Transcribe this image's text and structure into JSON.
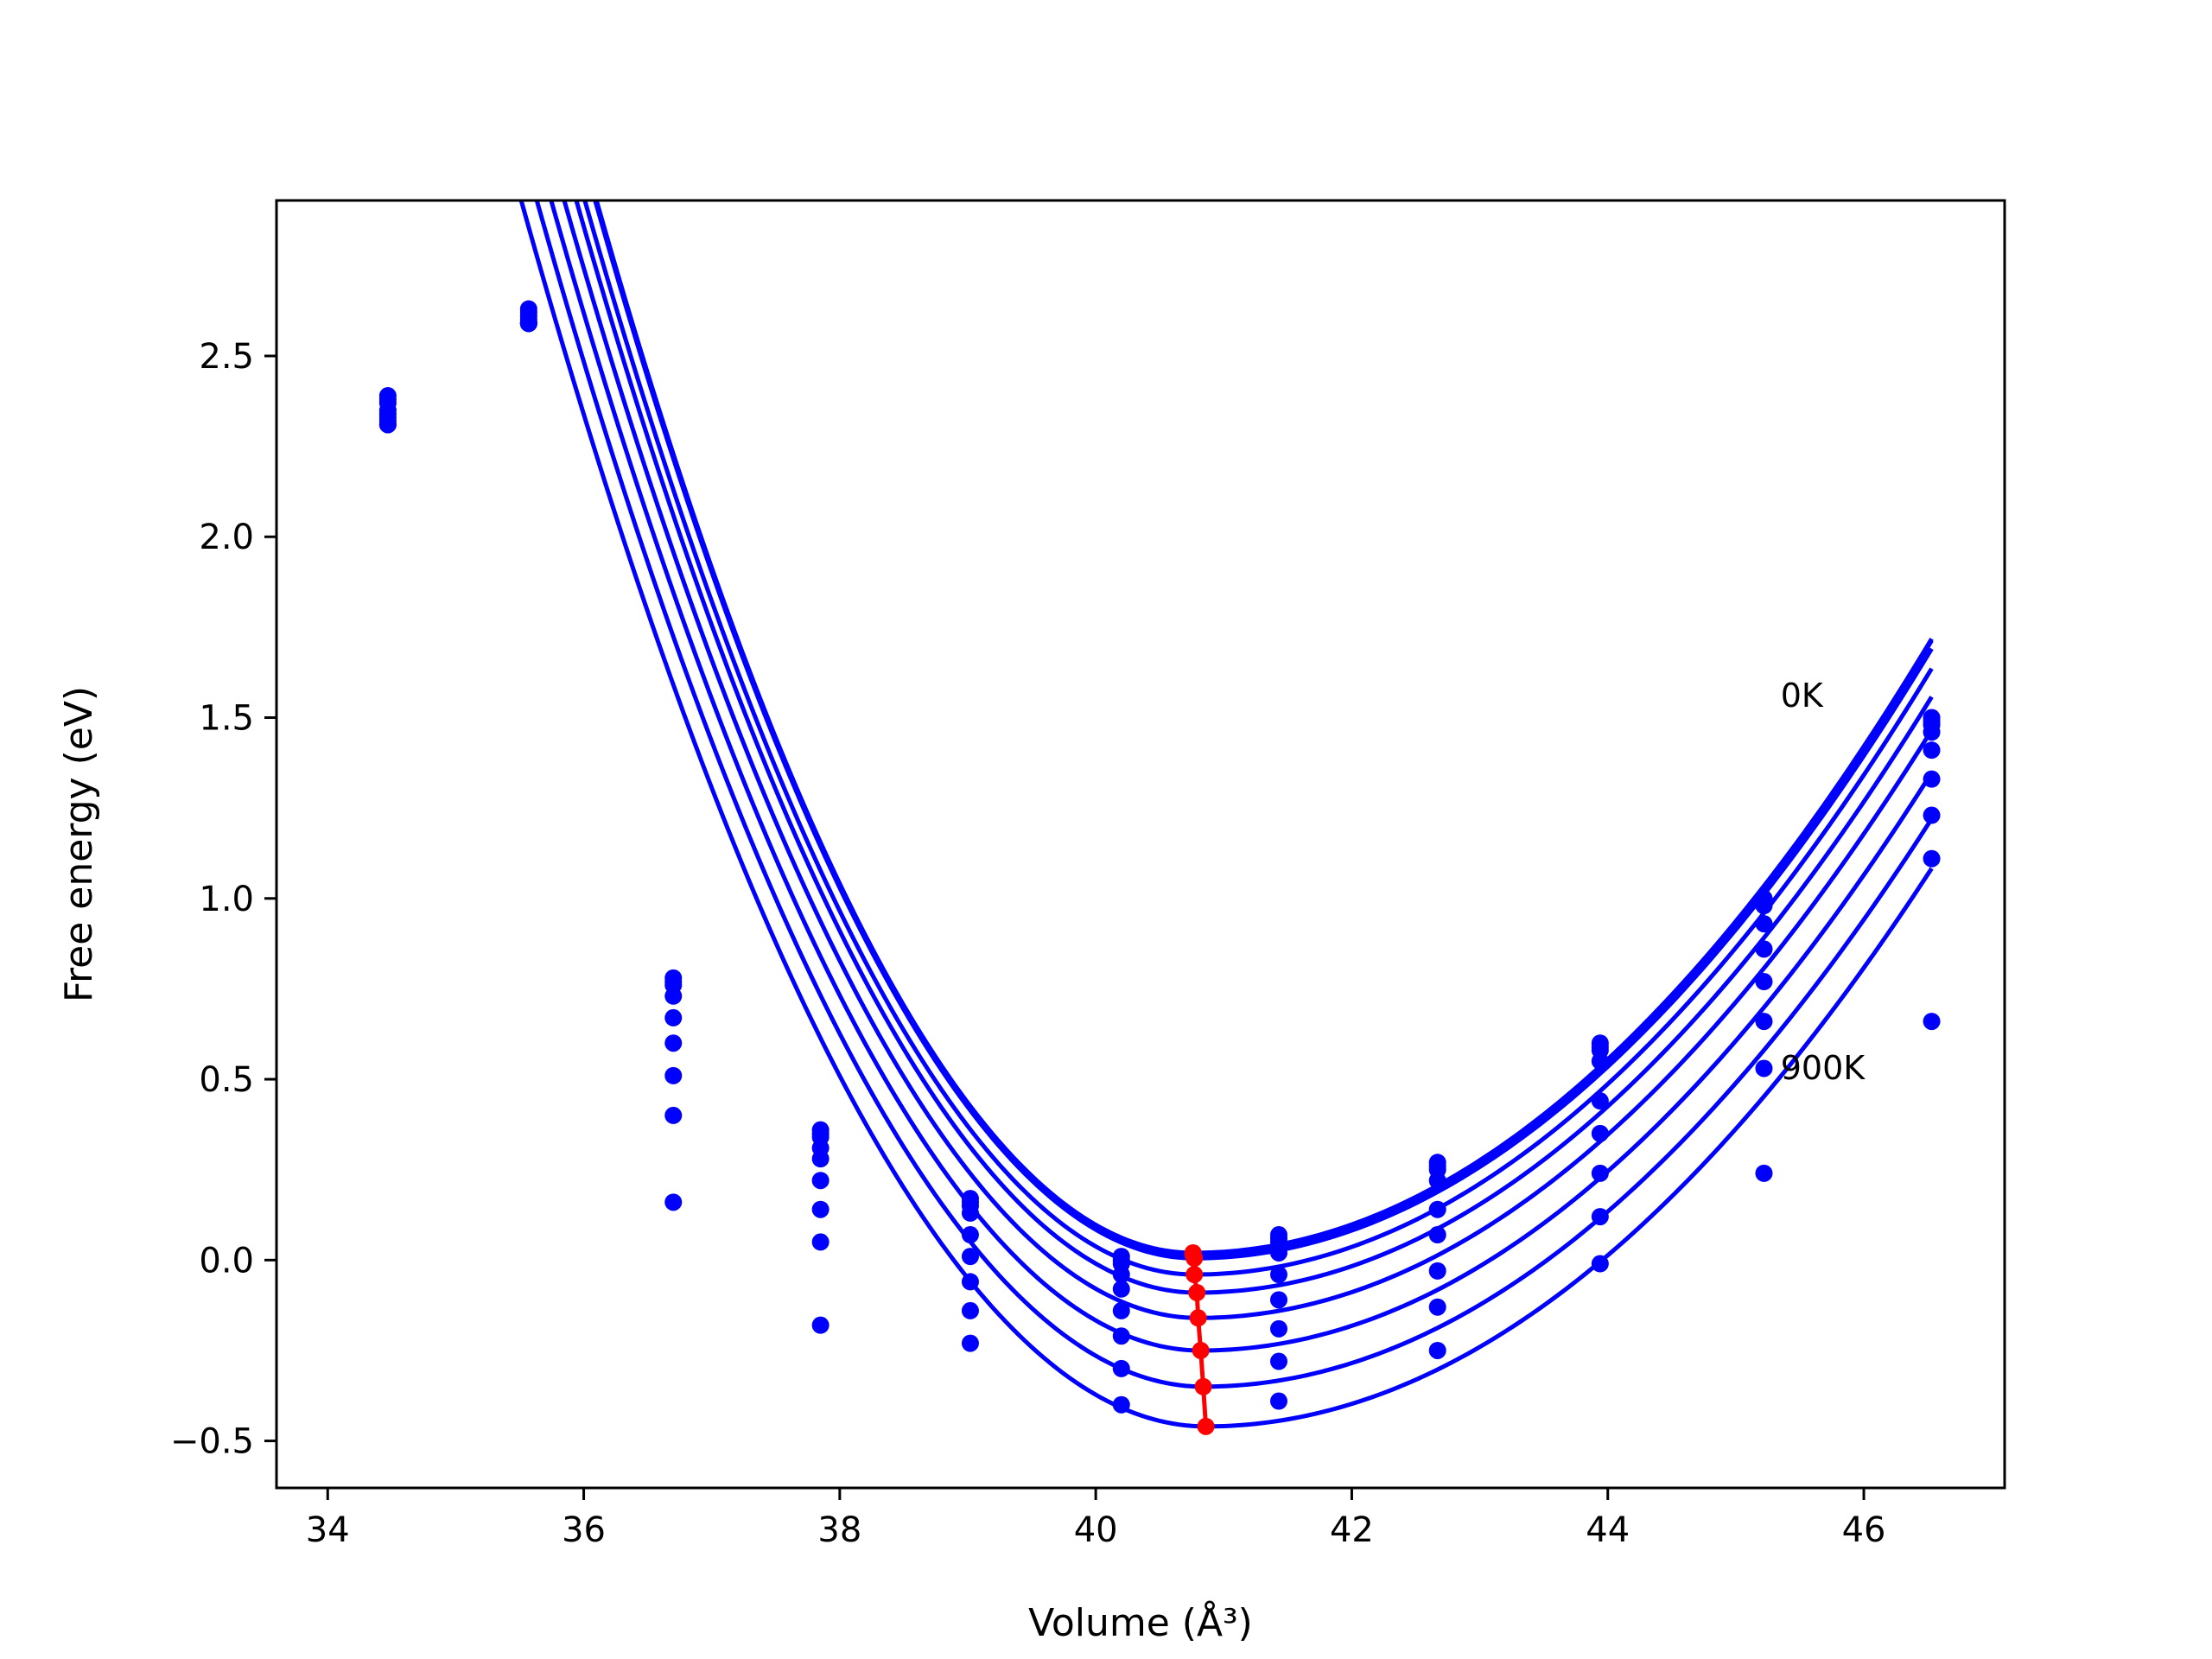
{
  "chart_data": {
    "type": "line",
    "xlabel": "Volume (Å³)",
    "ylabel": "Free energy (eV)",
    "xlim": [
      33.6,
      47.1
    ],
    "ylim": [
      -0.63,
      2.93
    ],
    "xticks": [
      "34",
      "36",
      "38",
      "40",
      "42",
      "44",
      "46"
    ],
    "yticks": [
      "−0.5",
      "0.0",
      "0.5",
      "1.0",
      "1.5",
      "2.0",
      "2.5"
    ],
    "xtick_values": [
      34,
      36,
      38,
      40,
      42,
      44,
      46
    ],
    "ytick_values": [
      -0.5,
      0,
      0.5,
      1.0,
      1.5,
      2.0,
      2.5
    ],
    "grid": false,
    "colors": {
      "curves": "#0000ff",
      "points": "#0000ff",
      "minima": "#ff0000"
    },
    "annotations": [
      {
        "text": "0K",
        "x": 45.35,
        "y": 1.53
      },
      {
        "text": "900K",
        "x": 45.35,
        "y": 0.5
      }
    ],
    "volumes": [
      34.47,
      35.57,
      36.7,
      37.85,
      39.02,
      40.2,
      41.43,
      42.67,
      43.94,
      45.22,
      46.53
    ],
    "curve_range": [
      34.47,
      46.53
    ],
    "series": [
      {
        "fit": {
          "v0": 40.76,
          "e0": 0.02,
          "a_left": 0.134,
          "a_right": 0.051
        },
        "points": [
          2.39,
          2.63,
          0.78,
          0.36,
          0.17,
          0.01,
          0.07,
          0.27,
          0.6,
          1.0,
          1.5
        ]
      },
      {
        "fit": {
          "v0": 40.76,
          "e0": 0.015,
          "a_left": 0.134,
          "a_right": 0.051
        },
        "points": [
          2.38,
          2.62,
          0.77,
          0.35,
          0.16,
          0.0,
          0.06,
          0.26,
          0.59,
          0.99,
          1.49
        ]
      },
      {
        "fit": {
          "v0": 40.77,
          "e0": 0.005,
          "a_left": 0.1335,
          "a_right": 0.0508
        },
        "points": [
          2.37,
          2.61,
          0.76,
          0.34,
          0.15,
          -0.01,
          0.05,
          0.25,
          0.58,
          0.98,
          1.48
        ]
      },
      {
        "fit": {
          "v0": 40.77,
          "e0": -0.04,
          "a_left": 0.131,
          "a_right": 0.0505
        },
        "points": [
          2.35,
          2.6,
          0.73,
          0.31,
          0.13,
          -0.04,
          0.02,
          0.22,
          0.55,
          0.93,
          1.46
        ]
      },
      {
        "fit": {
          "v0": 40.79,
          "e0": -0.09,
          "a_left": 0.1285,
          "a_right": 0.05
        },
        "points": [
          2.34,
          2.59,
          0.67,
          0.28,
          0.07,
          -0.08,
          -0.04,
          0.14,
          0.44,
          0.86,
          1.41
        ]
      },
      {
        "fit": {
          "v0": 40.8,
          "e0": -0.16,
          "a_left": 0.126,
          "a_right": 0.0495
        },
        "points": [
          2.33,
          2.59,
          0.6,
          0.22,
          0.01,
          -0.14,
          -0.11,
          0.07,
          0.35,
          0.77,
          1.33
        ]
      },
      {
        "fit": {
          "v0": 40.82,
          "e0": -0.25,
          "a_left": 0.1235,
          "a_right": 0.049
        },
        "points": [
          2.32,
          2.59,
          0.51,
          0.14,
          -0.06,
          -0.21,
          -0.19,
          -0.03,
          0.24,
          0.66,
          1.23
        ]
      },
      {
        "fit": {
          "v0": 40.84,
          "e0": -0.35,
          "a_left": 0.121,
          "a_right": 0.0485
        },
        "points": [
          2.31,
          2.59,
          0.4,
          0.05,
          -0.14,
          -0.3,
          -0.28,
          -0.13,
          0.12,
          0.53,
          1.11
        ]
      },
      {
        "fit": {
          "v0": 40.86,
          "e0": -0.46,
          "a_left": 0.1185,
          "a_right": 0.048
        },
        "points": [
          2.31,
          2.59,
          0.16,
          -0.18,
          -0.23,
          -0.4,
          -0.39,
          -0.25,
          -0.01,
          0.24,
          0.66
        ]
      }
    ],
    "minima": [
      {
        "x": 40.76,
        "y": 0.02
      },
      {
        "x": 40.76,
        "y": 0.015
      },
      {
        "x": 40.77,
        "y": 0.005
      },
      {
        "x": 40.77,
        "y": -0.04
      },
      {
        "x": 40.79,
        "y": -0.09
      },
      {
        "x": 40.8,
        "y": -0.16
      },
      {
        "x": 40.82,
        "y": -0.25
      },
      {
        "x": 40.84,
        "y": -0.35
      },
      {
        "x": 40.86,
        "y": -0.46
      }
    ]
  }
}
